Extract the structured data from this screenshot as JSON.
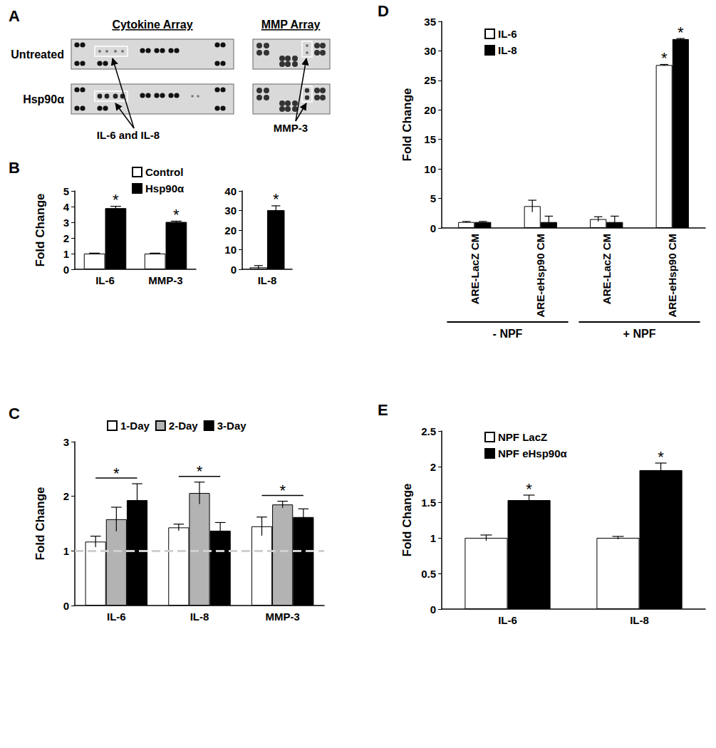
{
  "panel_a": {
    "label": "A",
    "arrays": [
      "Cytokine Array",
      "MMP Array"
    ],
    "rows": [
      "Untreated",
      "Hsp90α"
    ],
    "annotations": [
      "IL-6 and IL-8",
      "MMP-3"
    ]
  },
  "chart_data": [
    {
      "type": "bar",
      "title": "B",
      "y_label": "Fold Change",
      "categories": [
        "IL-6",
        "MMP-3"
      ],
      "series": [
        {
          "name": "Control",
          "color": "#ffffff",
          "values": [
            1.0,
            1.0
          ],
          "errors": [
            0.03,
            0.03
          ],
          "significance": [
            null,
            null
          ]
        },
        {
          "name": "Hsp90α",
          "color": "#000000",
          "values": [
            3.9,
            3.02
          ],
          "errors": [
            0.12,
            0.05
          ],
          "significance": [
            "*",
            "*"
          ]
        }
      ],
      "ylim": [
        0,
        5
      ],
      "yticks": [
        0,
        1,
        2,
        3,
        4,
        5
      ],
      "legend": "upper left",
      "grid": false
    },
    {
      "type": "bar",
      "categories": [
        "IL-8"
      ],
      "series": [
        {
          "name": "Control",
          "color": "#ffffff",
          "values": [
            1.0
          ],
          "errors": [
            0.9
          ],
          "significance": [
            null
          ]
        },
        {
          "name": "Hsp90α",
          "color": "#000000",
          "values": [
            30.2
          ],
          "errors": [
            2.2
          ],
          "significance": [
            "*"
          ]
        }
      ],
      "ylim": [
        0,
        40
      ],
      "yticks": [
        0,
        10,
        20,
        30,
        40
      ],
      "legend": "none",
      "grid": false
    },
    {
      "type": "bar",
      "title": "C",
      "y_label": "Fold Change",
      "categories": [
        "IL-6",
        "IL-8",
        "MMP-3"
      ],
      "series": [
        {
          "name": "1-Day",
          "color": "#ffffff",
          "values": [
            1.17,
            1.43,
            1.45
          ],
          "errors": [
            0.1,
            0.06,
            0.17
          ],
          "significance": [
            null,
            null,
            null
          ]
        },
        {
          "name": "2-Day",
          "color": "#b3b3b3",
          "values": [
            1.58,
            2.06,
            1.85
          ],
          "errors": [
            0.22,
            0.2,
            0.06
          ],
          "significance": [
            null,
            null,
            null
          ]
        },
        {
          "name": "3-Day",
          "color": "#000000",
          "values": [
            1.93,
            1.37,
            1.62
          ],
          "errors": [
            0.3,
            0.15,
            0.15
          ],
          "significance": [
            null,
            null,
            null
          ]
        }
      ],
      "group_significance": [
        "*",
        "*",
        "*"
      ],
      "reference_line": 1,
      "ylim": [
        0,
        3
      ],
      "yticks": [
        0,
        1,
        2,
        3
      ],
      "legend": "upper left",
      "grid": false
    },
    {
      "type": "bar",
      "title": "D",
      "y_label": "Fold Change",
      "categories": [
        "ARE-LacZ CM",
        "ARE-eHsp90 CM",
        "ARE-LacZ CM",
        "ARE-eHsp90 CM"
      ],
      "groups": [
        {
          "label": "- NPF",
          "span": 2
        },
        {
          "label": "+ NPF",
          "span": 2
        }
      ],
      "series": [
        {
          "name": "IL-6",
          "color": "#ffffff",
          "values": [
            1.0,
            3.7,
            1.5,
            27.6
          ],
          "errors": [
            0.1,
            1.0,
            0.4,
            0.1
          ],
          "significance": [
            null,
            null,
            null,
            "*"
          ]
        },
        {
          "name": "IL-8",
          "color": "#000000",
          "values": [
            1.0,
            1.0,
            1.0,
            32.0
          ],
          "errors": [
            0.1,
            1.0,
            1.0,
            0.1
          ],
          "significance": [
            null,
            null,
            null,
            "*"
          ]
        }
      ],
      "ylim": [
        0,
        35
      ],
      "yticks": [
        0,
        5,
        10,
        15,
        20,
        25,
        30,
        35
      ],
      "legend": "upper left",
      "grid": false
    },
    {
      "type": "bar",
      "title": "E",
      "y_label": "Fold Change",
      "categories": [
        "IL-6",
        "IL-8"
      ],
      "series": [
        {
          "name": "NPF LacZ",
          "color": "#ffffff",
          "values": [
            1.0,
            1.0
          ],
          "errors": [
            0.04,
            0.02
          ],
          "significance": [
            null,
            null
          ]
        },
        {
          "name": "NPF eHsp90α",
          "color": "#000000",
          "values": [
            1.53,
            1.95
          ],
          "errors": [
            0.07,
            0.1
          ],
          "significance": [
            "*",
            "*"
          ]
        }
      ],
      "ylim": [
        0,
        2.5
      ],
      "yticks": [
        0,
        0.5,
        1,
        1.5,
        2,
        2.5
      ],
      "legend": "upper left",
      "grid": false
    }
  ]
}
